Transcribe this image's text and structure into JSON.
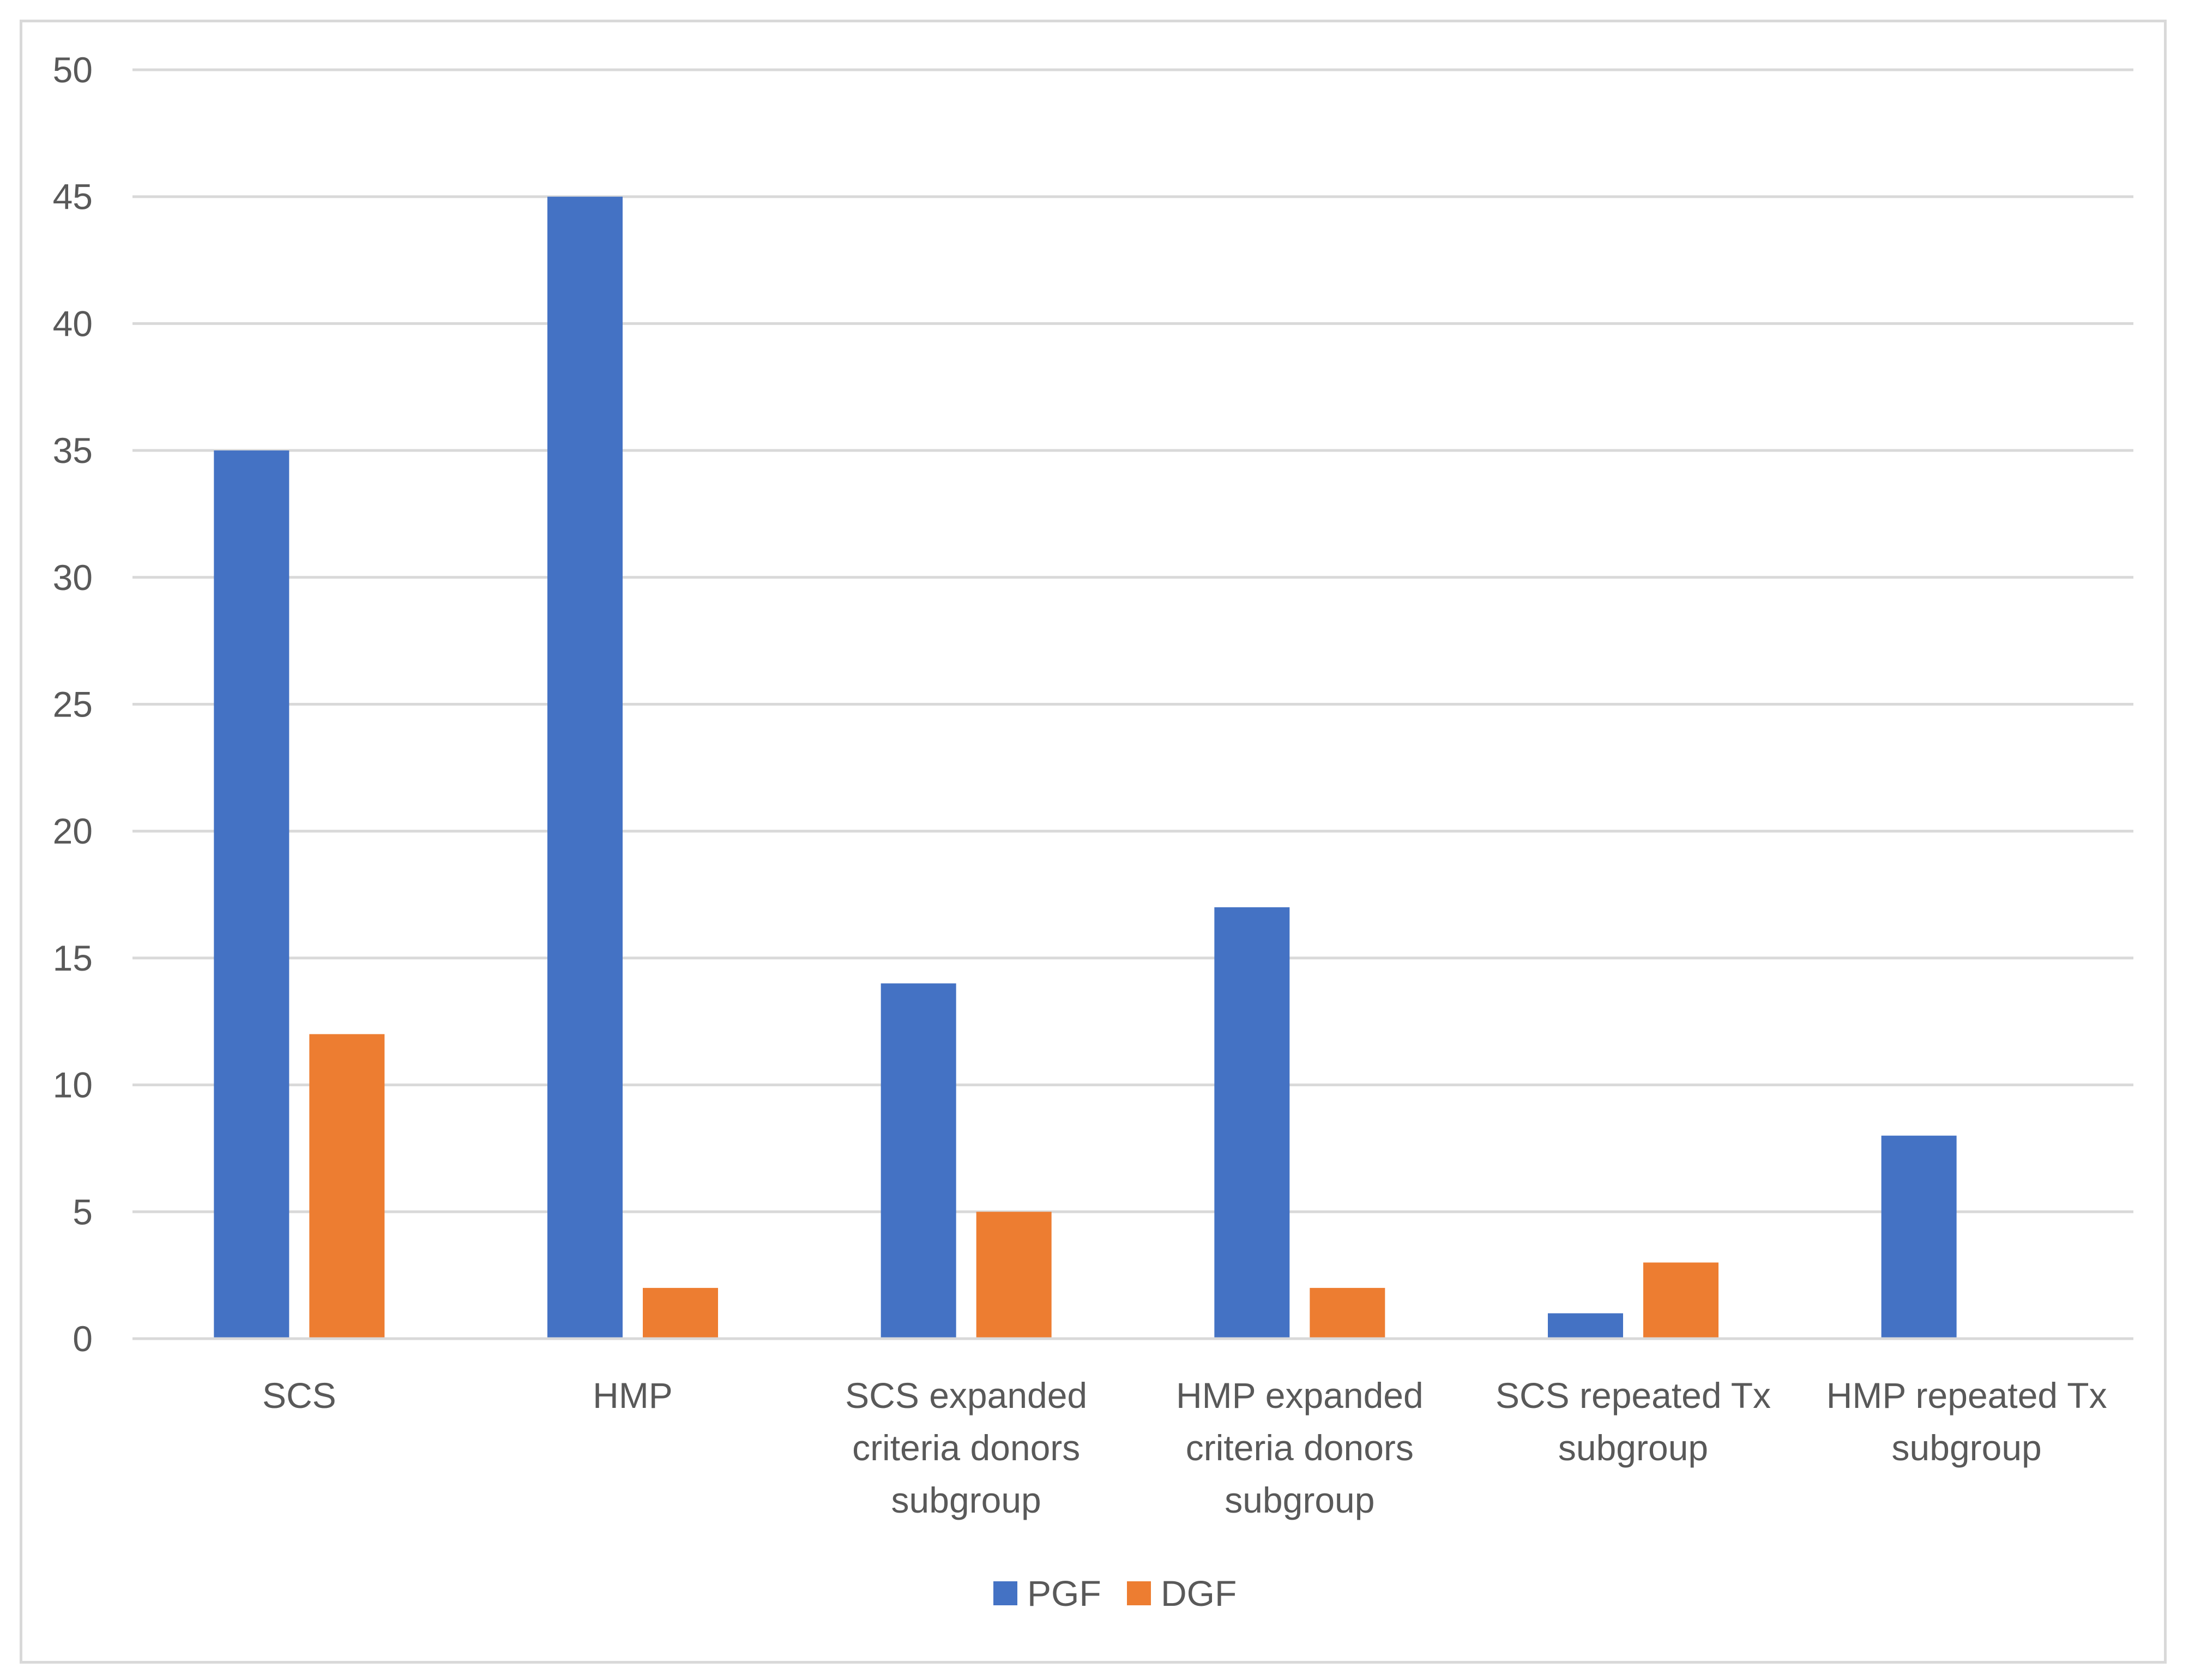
{
  "chart_data": {
    "type": "bar",
    "title": "",
    "xlabel": "",
    "ylabel": "",
    "ylim": [
      0,
      50
    ],
    "yticks": [
      0,
      5,
      10,
      15,
      20,
      25,
      30,
      35,
      40,
      45,
      50
    ],
    "grid": true,
    "legend_position": "bottom",
    "categories": [
      [
        "SCS"
      ],
      [
        "HMP"
      ],
      [
        "SCS expanded",
        "criteria donors",
        "subgroup"
      ],
      [
        "HMP expanded",
        "criteria donors",
        "subgroup"
      ],
      [
        "SCS repeated Tx",
        "subgroup"
      ],
      [
        "HMP repeated Tx",
        "subgroup"
      ]
    ],
    "series": [
      {
        "name": "PGF",
        "color": "#4472C4",
        "values": [
          35,
          45,
          14,
          17,
          1,
          8
        ]
      },
      {
        "name": "DGF",
        "color": "#ED7D31",
        "values": [
          12,
          2,
          5,
          2,
          3,
          0
        ]
      }
    ]
  }
}
